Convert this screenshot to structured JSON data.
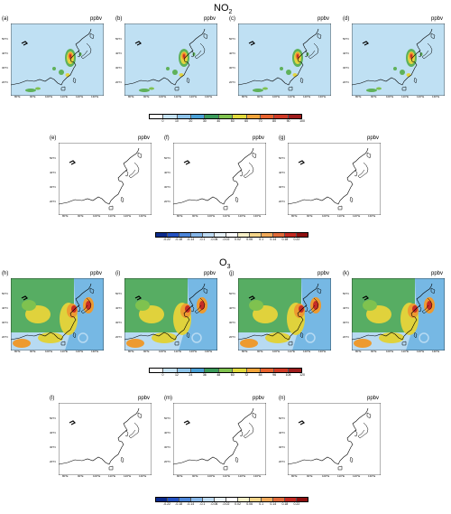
{
  "no2": {
    "title_main": "NO",
    "title_sub": "2",
    "top_panels": [
      {
        "label": "(a)",
        "unit": "ppbv"
      },
      {
        "label": "(b)",
        "unit": "ppbv"
      },
      {
        "label": "(c)",
        "unit": "ppbv"
      },
      {
        "label": "(d)",
        "unit": "ppbv"
      }
    ],
    "bottom_panels": [
      {
        "label": "(e)",
        "unit": "ppbv"
      },
      {
        "label": "(f)",
        "unit": "ppbv"
      },
      {
        "label": "(g)",
        "unit": "ppbv"
      }
    ],
    "colorbar_top": {
      "ticks": [
        "0",
        "10",
        "20",
        "30",
        "40",
        "50",
        "60",
        "70",
        "80",
        "90",
        "100"
      ],
      "colors": [
        "#ffffff",
        "#c6e3f5",
        "#8ec4ea",
        "#4aa0d6",
        "#3b9b5a",
        "#7fc24f",
        "#e0d93c",
        "#f2a43a",
        "#e8632f",
        "#d03a26",
        "#9e1c1c"
      ]
    },
    "colorbar_bottom": {
      "ticks": [
        "-0.22",
        "-0.18",
        "-0.14",
        "-0.1",
        "-0.06",
        "-0.02",
        "0.02",
        "0.06",
        "0.1",
        "0.14",
        "0.18",
        "0.22"
      ],
      "colors": [
        "#0a2a8c",
        "#2452c2",
        "#4d86d9",
        "#86b6e8",
        "#bddaf2",
        "#e8f2f9",
        "#ffffff",
        "#f7f0c8",
        "#f4d58a",
        "#f0a95a",
        "#e06a3a",
        "#c42a22",
        "#8e1010"
      ]
    }
  },
  "o3": {
    "title_main": "O",
    "title_sub": "3",
    "top_panels": [
      {
        "label": "(h)",
        "unit": "ppbv"
      },
      {
        "label": "(i)",
        "unit": "ppbv"
      },
      {
        "label": "(j)",
        "unit": "ppbv"
      },
      {
        "label": "(k)",
        "unit": "ppbv"
      }
    ],
    "bottom_panels": [
      {
        "label": "(l)",
        "unit": "ppbv"
      },
      {
        "label": "(m)",
        "unit": "ppbv"
      },
      {
        "label": "(n)",
        "unit": "ppbv"
      }
    ],
    "colorbar_top": {
      "ticks": [
        "0",
        "12",
        "24",
        "36",
        "48",
        "60",
        "72",
        "84",
        "96",
        "108",
        "120"
      ],
      "colors": [
        "#ffffff",
        "#c6e3f5",
        "#8ec4ea",
        "#4aa0d6",
        "#3b9b5a",
        "#7fc24f",
        "#e0d93c",
        "#f2a43a",
        "#e8632f",
        "#d03a26",
        "#9e1c1c"
      ]
    },
    "colorbar_bottom": {
      "ticks": [
        "-0.22",
        "-0.18",
        "-0.14",
        "-0.1",
        "-0.06",
        "-0.02",
        "0.02",
        "0.06",
        "0.1",
        "0.14",
        "0.18",
        "0.22"
      ],
      "colors": [
        "#0a2a8c",
        "#2452c2",
        "#4d86d9",
        "#86b6e8",
        "#bddaf2",
        "#e8f2f9",
        "#ffffff",
        "#f7f0c8",
        "#f4d58a",
        "#f0a95a",
        "#e06a3a",
        "#c42a22",
        "#8e1010"
      ]
    }
  },
  "axes": {
    "lat_labels": [
      "50°N",
      "40°N",
      "30°N",
      "20°N"
    ],
    "lon_labels": [
      "80°E",
      "90°E",
      "100°E",
      "110°E",
      "120°E",
      "130°E"
    ]
  },
  "map_colors": {
    "no2_bg": "#bfe0f3",
    "no2_green": "#5fb15a",
    "no2_yellow": "#e3d43f",
    "no2_orange": "#ee8a2e",
    "no2_red": "#c93224",
    "o3_green": "#57ad63",
    "o3_blue": "#76b8e4",
    "o3_lightblue": "#b7daf2",
    "o3_yellow": "#e0d23c",
    "o3_orange": "#ed9a30",
    "o3_red": "#c52c26",
    "diff_bg": "#ffffff"
  }
}
